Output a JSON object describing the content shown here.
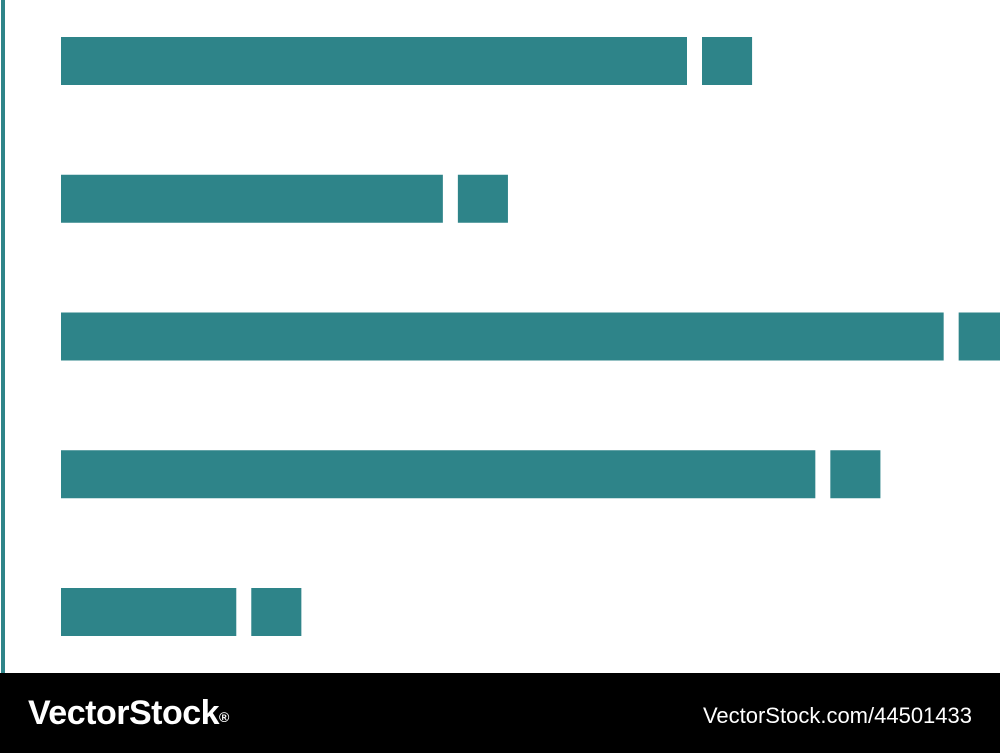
{
  "chart_data": {
    "type": "bar",
    "orientation": "horizontal",
    "categories": [
      "",
      "",
      "",
      "",
      ""
    ],
    "series": [
      {
        "values": [
          10,
          6.1,
          14.1,
          12.05,
          2.8
        ]
      },
      {
        "values": [
          0.8,
          0.8,
          0.8,
          0.8,
          0.8
        ]
      }
    ],
    "stacked": true,
    "xlim": [
      0,
      15
    ],
    "title": "",
    "xlabel": "",
    "ylabel": "",
    "grid": false,
    "legend": "none",
    "colors": {
      "bar": "#2e8489",
      "axis": "#2e8489",
      "background": "#ffffff"
    }
  },
  "footer": {
    "brand": "VectorStock",
    "brand_mark": "®",
    "image_id": "VectorStock.com/44501433",
    "background": "#000000",
    "text_color": "#ffffff"
  }
}
